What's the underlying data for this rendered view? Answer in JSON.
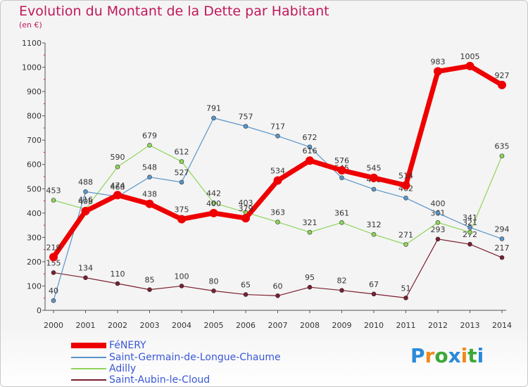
{
  "title": "Evolution du Montant de la Dette par Habitant",
  "subtitle": "(en €)",
  "logo": {
    "text": "Proxiti",
    "letters": [
      "P",
      "r",
      "o",
      "x",
      "i",
      "t",
      "i"
    ],
    "colors": [
      "#2a8ad8",
      "#f08a1c",
      "#3aa836",
      "#2a8ad8",
      "#f08a1c",
      "#3aa836",
      "#2a8ad8"
    ]
  },
  "chart_data": {
    "type": "line",
    "categories": [
      "2000",
      "2001",
      "2002",
      "2003",
      "2004",
      "2005",
      "2006",
      "2007",
      "2008",
      "2009",
      "2010",
      "2011",
      "2012",
      "2013",
      "2014"
    ],
    "ylim": [
      0,
      1100
    ],
    "yticks": [
      "0",
      "100",
      "200",
      "300",
      "400",
      "500",
      "600",
      "700",
      "800",
      "900",
      "1000",
      "1100"
    ],
    "grid": false,
    "legend_placement": "bottom-left",
    "series": [
      {
        "name": "Saint-Aubin-le-Cloud",
        "color": "#7a1f2e",
        "values": [
          155,
          134,
          110,
          85,
          100,
          80,
          65,
          60,
          95,
          82,
          67,
          51,
          293,
          272,
          217
        ],
        "labels": [
          "155",
          "134",
          "110",
          "85",
          "100",
          "80",
          "65",
          "60",
          "95",
          "82",
          "67",
          "51",
          "293",
          "272",
          "217"
        ]
      },
      {
        "name": "Adilly",
        "color": "#8ed45a",
        "values": [
          453,
          416,
          590,
          679,
          612,
          442,
          403,
          363,
          321,
          361,
          312,
          271,
          361,
          321,
          635
        ],
        "labels": [
          "453",
          "416",
          "590",
          "679",
          "612",
          "442",
          "403",
          "363",
          "321",
          "361",
          "312",
          "271",
          "361",
          "321",
          "635"
        ]
      },
      {
        "name": "Saint-Germain-de-Longue-Chaume",
        "color": "#5a95c8",
        "values": [
          40,
          488,
          468,
          548,
          527,
          791,
          757,
          717,
          672,
          545,
          498,
          462,
          400,
          341,
          294
        ],
        "labels": [
          "40",
          "488",
          "468",
          "548",
          "527",
          "791",
          "757",
          "717",
          "672",
          "545",
          "498",
          "462",
          "400",
          "341",
          "294"
        ]
      },
      {
        "name": "FéNERY",
        "color": "#ee0000",
        "values": [
          219,
          408,
          474,
          438,
          375,
          400,
          379,
          534,
          616,
          576,
          545,
          514,
          983,
          1005,
          927
        ],
        "labels": [
          "219",
          "408",
          "474",
          "438",
          "375",
          "400",
          "379",
          "534",
          "616",
          "576",
          "545",
          "514",
          "983",
          "1005",
          "927"
        ]
      }
    ]
  },
  "legend": [
    {
      "label": "FéNERY",
      "color": "#ee0000"
    },
    {
      "label": "Saint-Germain-de-Longue-Chaume",
      "color": "#5a95c8"
    },
    {
      "label": "Adilly",
      "color": "#8ed45a"
    },
    {
      "label": "Saint-Aubin-le-Cloud",
      "color": "#7a1f2e"
    }
  ]
}
